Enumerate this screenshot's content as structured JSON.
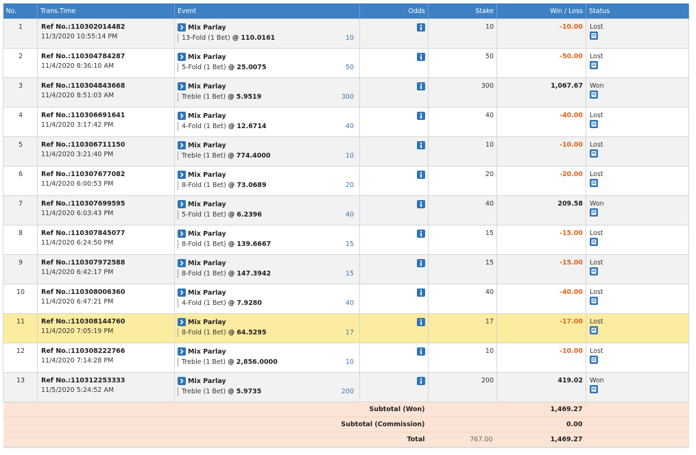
{
  "table": {
    "headers": [
      "No.",
      "Trans.Time",
      "Event",
      "Odds",
      "Stake",
      "Win / Loss",
      "Status"
    ],
    "odds_prefix": "@",
    "rows": [
      {
        "no": "1",
        "ref": "Ref No.:110302014482",
        "time": "11/3/2020 10:55:14 PM",
        "event": "Mix Parlay",
        "bet": "13-Fold (1 Bet)",
        "odds": "110.0161",
        "bet_stake": "10",
        "stake": "10",
        "win_loss": "-10.00",
        "status": "Lost"
      },
      {
        "no": "2",
        "ref": "Ref No.:110304784287",
        "time": "11/4/2020 8:36:10 AM",
        "event": "Mix Parlay",
        "bet": "5-Fold (1 Bet)",
        "odds": "25.0075",
        "bet_stake": "50",
        "stake": "50",
        "win_loss": "-50.00",
        "status": "Lost"
      },
      {
        "no": "3",
        "ref": "Ref No.:110304843668",
        "time": "11/4/2020 8:51:03 AM",
        "event": "Mix Parlay",
        "bet": "Treble (1 Bet)",
        "odds": "5.9519",
        "bet_stake": "300",
        "stake": "300",
        "win_loss": "1,067.67",
        "status": "Won"
      },
      {
        "no": "4",
        "ref": "Ref No.:110306691641",
        "time": "11/4/2020 3:17:42 PM",
        "event": "Mix Parlay",
        "bet": "4-Fold (1 Bet)",
        "odds": "12.6714",
        "bet_stake": "40",
        "stake": "40",
        "win_loss": "-40.00",
        "status": "Lost"
      },
      {
        "no": "5",
        "ref": "Ref No.:110306711150",
        "time": "11/4/2020 3:21:40 PM",
        "event": "Mix Parlay",
        "bet": "Treble (1 Bet)",
        "odds": "774.4000",
        "bet_stake": "10",
        "stake": "10",
        "win_loss": "-10.00",
        "status": "Lost"
      },
      {
        "no": "6",
        "ref": "Ref No.:110307677082",
        "time": "11/4/2020 6:00:53 PM",
        "event": "Mix Parlay",
        "bet": "8-Fold (1 Bet)",
        "odds": "73.0689",
        "bet_stake": "20",
        "stake": "20",
        "win_loss": "-20.00",
        "status": "Lost"
      },
      {
        "no": "7",
        "ref": "Ref No.:110307699595",
        "time": "11/4/2020 6:03:43 PM",
        "event": "Mix Parlay",
        "bet": "5-Fold (1 Bet)",
        "odds": "6.2396",
        "bet_stake": "40",
        "stake": "40",
        "win_loss": "209.58",
        "status": "Won"
      },
      {
        "no": "8",
        "ref": "Ref No.:110307845077",
        "time": "11/4/2020 6:24:50 PM",
        "event": "Mix Parlay",
        "bet": "8-Fold (1 Bet)",
        "odds": "139.6667",
        "bet_stake": "15",
        "stake": "15",
        "win_loss": "-15.00",
        "status": "Lost"
      },
      {
        "no": "9",
        "ref": "Ref No.:110307972588",
        "time": "11/4/2020 6:42:17 PM",
        "event": "Mix Parlay",
        "bet": "8-Fold (1 Bet)",
        "odds": "147.3942",
        "bet_stake": "15",
        "stake": "15",
        "win_loss": "-15.00",
        "status": "Lost"
      },
      {
        "no": "10",
        "ref": "Ref No.:110308006360",
        "time": "11/4/2020 6:47:21 PM",
        "event": "Mix Parlay",
        "bet": "4-Fold (1 Bet)",
        "odds": "7.9280",
        "bet_stake": "40",
        "stake": "40",
        "win_loss": "-40.00",
        "status": "Lost"
      },
      {
        "no": "11",
        "ref": "Ref No.:110308144760",
        "time": "11/4/2020 7:05:19 PM",
        "event": "Mix Parlay",
        "bet": "8-Fold (1 Bet)",
        "odds": "64.5295",
        "bet_stake": "17",
        "stake": "17",
        "win_loss": "-17.00",
        "status": "Lost",
        "highlight": true
      },
      {
        "no": "12",
        "ref": "Ref No.:110308222766",
        "time": "11/4/2020 7:14:28 PM",
        "event": "Mix Parlay",
        "bet": "Treble (1 Bet)",
        "odds": "2,856.0000",
        "bet_stake": "10",
        "stake": "10",
        "win_loss": "-10.00",
        "status": "Lost"
      },
      {
        "no": "13",
        "ref": "Ref No.:110312253333",
        "time": "11/5/2020 5:24:52 AM",
        "event": "Mix Parlay",
        "bet": "Treble (1 Bet)",
        "odds": "5.9735",
        "bet_stake": "200",
        "stake": "200",
        "win_loss": "419.02",
        "status": "Won"
      }
    ],
    "footer": [
      {
        "label": "Subtotal (Won)",
        "win_loss": "1,469.27"
      },
      {
        "label": "Subtotal (Commission)",
        "win_loss": "0.00"
      },
      {
        "label": "Total",
        "stake": "767.00",
        "win_loss": "1,469.27"
      }
    ]
  }
}
